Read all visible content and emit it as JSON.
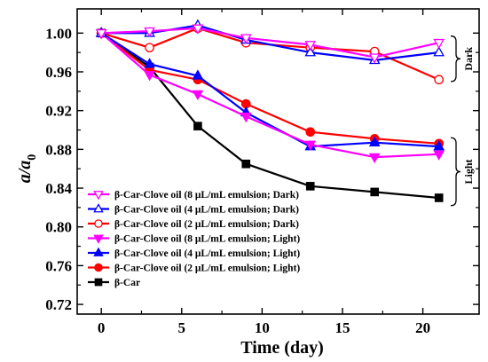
{
  "chart_data": {
    "type": "line",
    "title": "",
    "xlabel": "Time (day)",
    "ylabel_main": "a/a",
    "ylabel_sub": "0",
    "xlim": [
      -1.5,
      23.5
    ],
    "ylim": [
      0.71,
      1.025
    ],
    "xticks": [
      "0",
      "5",
      "10",
      "15",
      "20"
    ],
    "yticks": [
      "0.72",
      "0.76",
      "0.80",
      "0.84",
      "0.88",
      "0.92",
      "0.96",
      "1.00"
    ],
    "grid": false,
    "legend_position": "bottom-left",
    "series": [
      {
        "name": "β-Car-Clove oil (8 μL/mL emulsion; Dark)",
        "color": "#ff00ff",
        "marker": "triangle-down-open",
        "x": [
          0,
          3,
          6,
          9,
          13,
          17,
          21
        ],
        "y": [
          1.0,
          1.002,
          1.005,
          0.995,
          0.988,
          0.975,
          0.99
        ]
      },
      {
        "name": "β-Car-Clove oil (4 μL/mL emulsion; Dark)",
        "color": "#0000ff",
        "marker": "triangle-up-open",
        "x": [
          0,
          3,
          6,
          9,
          13,
          17,
          21
        ],
        "y": [
          1.0,
          1.0,
          1.008,
          0.993,
          0.98,
          0.972,
          0.98
        ]
      },
      {
        "name": "β-Car-Clove oil (2 μL/mL emulsion; Dark)",
        "color": "#ff0000",
        "marker": "circle-open",
        "x": [
          0,
          3,
          6,
          9,
          13,
          17,
          21
        ],
        "y": [
          1.0,
          0.985,
          1.005,
          0.99,
          0.985,
          0.981,
          0.952
        ]
      },
      {
        "name": "β-Car-Clove oil (8 μL/mL emulsion; Light)",
        "color": "#ff00ff",
        "marker": "triangle-down-filled",
        "x": [
          0,
          3,
          6,
          9,
          13,
          17,
          21
        ],
        "y": [
          1.0,
          0.957,
          0.937,
          0.914,
          0.885,
          0.872,
          0.875
        ]
      },
      {
        "name": "β-Car-Clove oil (4 μL/mL emulsion; Light)",
        "color": "#0000ff",
        "marker": "triangle-up-filled",
        "x": [
          0,
          3,
          6,
          9,
          13,
          17,
          21
        ],
        "y": [
          1.0,
          0.968,
          0.956,
          0.918,
          0.883,
          0.887,
          0.883
        ]
      },
      {
        "name": "β-Car-Clove oil (2 μL/mL emulsion; Light)",
        "color": "#ff0000",
        "marker": "circle-filled",
        "x": [
          0,
          3,
          6,
          9,
          13,
          17,
          21
        ],
        "y": [
          1.0,
          0.962,
          0.952,
          0.927,
          0.898,
          0.891,
          0.886
        ]
      },
      {
        "name": "β-Car",
        "color": "#000000",
        "marker": "square-filled",
        "x": [
          0,
          3,
          6,
          9,
          13,
          17,
          21
        ],
        "y": [
          1.0,
          0.965,
          0.904,
          0.865,
          0.842,
          0.836,
          0.83
        ]
      }
    ],
    "annotations": [
      {
        "label": "Dark",
        "y_from": 0.95,
        "y_to": 0.997
      },
      {
        "label": "Light",
        "y_from": 0.822,
        "y_to": 0.892
      }
    ]
  }
}
